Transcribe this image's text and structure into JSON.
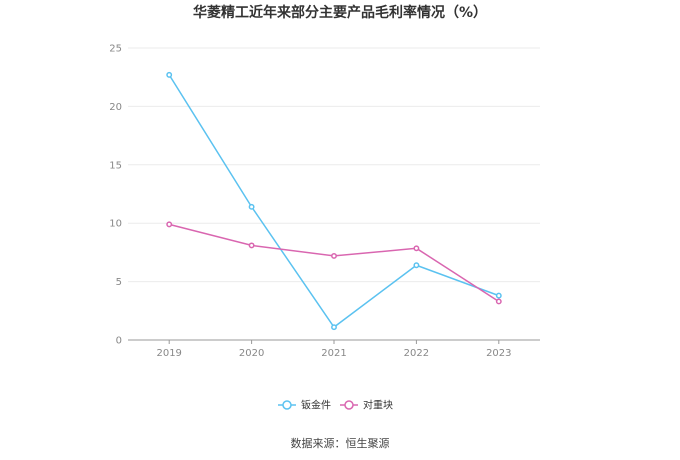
{
  "title": "华菱精工近年来部分主要产品毛利率情况（%）",
  "source": "数据来源：恒生聚源",
  "chart_data": {
    "type": "line",
    "x": [
      "2019",
      "2020",
      "2021",
      "2022",
      "2023"
    ],
    "series": [
      {
        "name": "钣金件",
        "color": "#5bc2f0",
        "values": [
          22.7,
          11.4,
          1.1,
          6.4,
          3.8
        ]
      },
      {
        "name": "对重块",
        "color": "#d966b0",
        "values": [
          9.9,
          8.1,
          7.2,
          7.85,
          3.3
        ]
      }
    ],
    "ylim": [
      0,
      25
    ],
    "yticks": [
      0,
      5,
      10,
      15,
      20,
      25
    ],
    "grid": true,
    "legend": "bottom"
  }
}
